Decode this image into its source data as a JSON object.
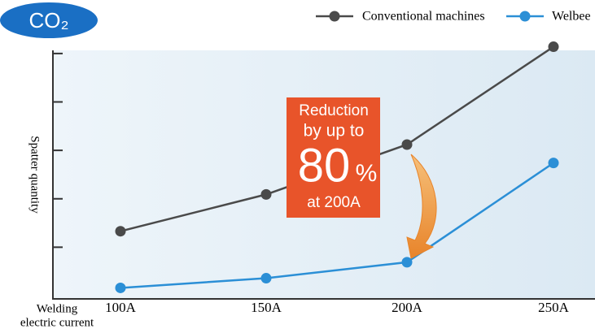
{
  "chart_data": {
    "type": "line",
    "badge": "CO₂",
    "categories": [
      "100A",
      "150A",
      "200A",
      "250A"
    ],
    "series": [
      {
        "name": "Conventional machines",
        "color": "#4a4a4a",
        "values": [
          1.33,
          2.09,
          3.12,
          5.14
        ]
      },
      {
        "name": "Welbee",
        "color": "#2b8fd6",
        "values": [
          0.16,
          0.36,
          0.69,
          2.74
        ]
      }
    ],
    "ylim": [
      0,
      5.3
    ],
    "yticks": [
      1,
      2,
      3,
      4,
      5
    ],
    "y_label": "Spatter quantity",
    "x_label": [
      "Welding",
      "electric current"
    ],
    "annotation": [
      "Reduction",
      "by up to",
      "80",
      "%",
      "at 200A"
    ],
    "annotation_color": "#e8542a"
  }
}
